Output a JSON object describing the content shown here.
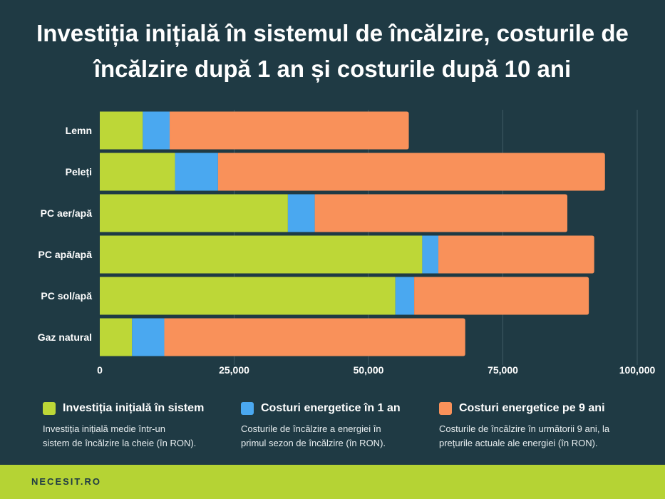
{
  "title_line1": "Investiția inițială în sistemul de încălzire, costurile de",
  "title_line2": "încălzire după 1 an și costurile după 10 ani",
  "chart_data": {
    "type": "bar",
    "orientation": "horizontal",
    "stacked": true,
    "categories": [
      "Lemn",
      "Peleți",
      "PC aer/apă",
      "PC apă/apă",
      "PC sol/apă",
      "Gaz natural"
    ],
    "series": [
      {
        "name": "Investiția inițială în sistem",
        "color": "#bdd737",
        "values": [
          8000,
          14000,
          35000,
          60000,
          55000,
          6000
        ]
      },
      {
        "name": "Costuri energetice în 1 an",
        "color": "#4aa8f0",
        "values": [
          5000,
          8000,
          5000,
          3000,
          3500,
          6000
        ]
      },
      {
        "name": "Costuri energetice pe 9 ani",
        "color": "#f9915a",
        "values": [
          44500,
          72000,
          47000,
          29000,
          32500,
          56000
        ]
      }
    ],
    "x_ticks": [
      "0",
      "25,000",
      "50,000",
      "75,000",
      "100,000"
    ],
    "x_tick_values": [
      0,
      25000,
      50000,
      75000,
      100000
    ],
    "xlim": [
      0,
      100000
    ],
    "grid": "vertical",
    "legend": "bottom"
  },
  "legend": [
    {
      "label": "Investiția inițială în sistem",
      "color": "#bdd737",
      "desc_line1": "Investiția inițială medie într-un",
      "desc_line2": "sistem de încălzire la cheie (în RON)."
    },
    {
      "label": "Costuri energetice în 1 an",
      "color": "#4aa8f0",
      "desc_line1": "Costurile de încălzire a energiei în",
      "desc_line2": "primul sezon de încălzire (în RON)."
    },
    {
      "label": "Costuri energetice pe 9 ani",
      "color": "#f9915a",
      "desc_line1": "Costurile de încălzire în următorii 9 ani, la",
      "desc_line2": "prețurile actuale ale energiei (în RON)."
    }
  ],
  "footer": {
    "brand": "NECESIT.RO"
  }
}
